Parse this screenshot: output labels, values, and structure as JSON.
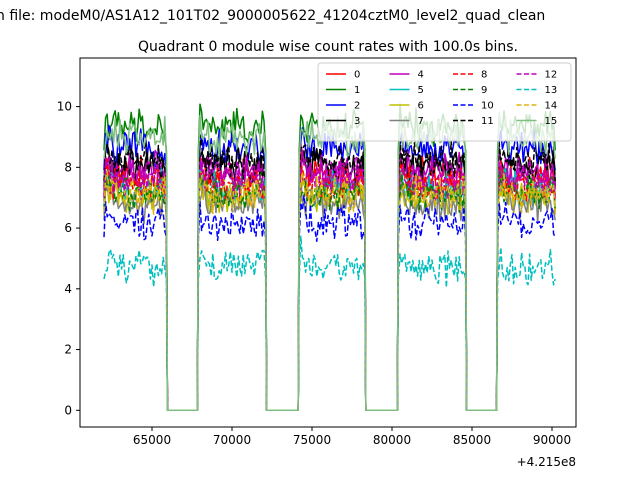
{
  "suptitle": "n file: modeM0/AS1A12_101T02_9000005622_41204cztM0_level2_quad_clean",
  "chart_data": {
    "type": "line",
    "title": "Quadrant 0 module wise count rates with 100.0s bins.",
    "xlabel": "",
    "ylabel": "",
    "x_offset_label": "+4.215e8",
    "xlim": [
      60500,
      91500
    ],
    "ylim": [
      -0.55,
      11.6
    ],
    "xticks": [
      65000,
      70000,
      75000,
      80000,
      85000,
      90000
    ],
    "yticks": [
      0,
      2,
      4,
      6,
      8,
      10
    ],
    "bin_seconds": 100,
    "on_intervals": [
      [
        62000,
        65900
      ],
      [
        67900,
        72100
      ],
      [
        74200,
        78300
      ],
      [
        80400,
        84600
      ],
      [
        86600,
        90200
      ]
    ],
    "gaps_level": 0,
    "legend": {
      "location": "top-right",
      "columns": 4
    },
    "series": [
      {
        "name": "0",
        "color": "#ff0000",
        "dash": "solid",
        "level": 7.7
      },
      {
        "name": "1",
        "color": "#008000",
        "dash": "solid",
        "level": 9.3
      },
      {
        "name": "2",
        "color": "#0000ff",
        "dash": "solid",
        "level": 8.6
      },
      {
        "name": "3",
        "color": "#000000",
        "dash": "solid",
        "level": 8.0
      },
      {
        "name": "4",
        "color": "#bf00bf",
        "dash": "solid",
        "level": 7.9
      },
      {
        "name": "5",
        "color": "#00bfbf",
        "dash": "solid",
        "level": 7.3
      },
      {
        "name": "6",
        "color": "#bfbf00",
        "dash": "solid",
        "level": 7.0
      },
      {
        "name": "7",
        "color": "#808080",
        "dash": "solid",
        "level": 6.8
      },
      {
        "name": "8",
        "color": "#ff0000",
        "dash": "dashed",
        "level": 7.5
      },
      {
        "name": "9",
        "color": "#008000",
        "dash": "dashed",
        "level": 7.2
      },
      {
        "name": "10",
        "color": "#0000ff",
        "dash": "dashed",
        "level": 6.2
      },
      {
        "name": "11",
        "color": "#000000",
        "dash": "dashed",
        "level": 8.2
      },
      {
        "name": "12",
        "color": "#bf00bf",
        "dash": "dashed",
        "level": 7.6
      },
      {
        "name": "13",
        "color": "#00bfbf",
        "dash": "dashed",
        "level": 4.7
      },
      {
        "name": "14",
        "color": "#dbb40c",
        "dash": "dashed",
        "level": 7.1
      },
      {
        "name": "15",
        "color": "#7fbf7f",
        "dash": "solid",
        "level": 9.0
      }
    ]
  }
}
